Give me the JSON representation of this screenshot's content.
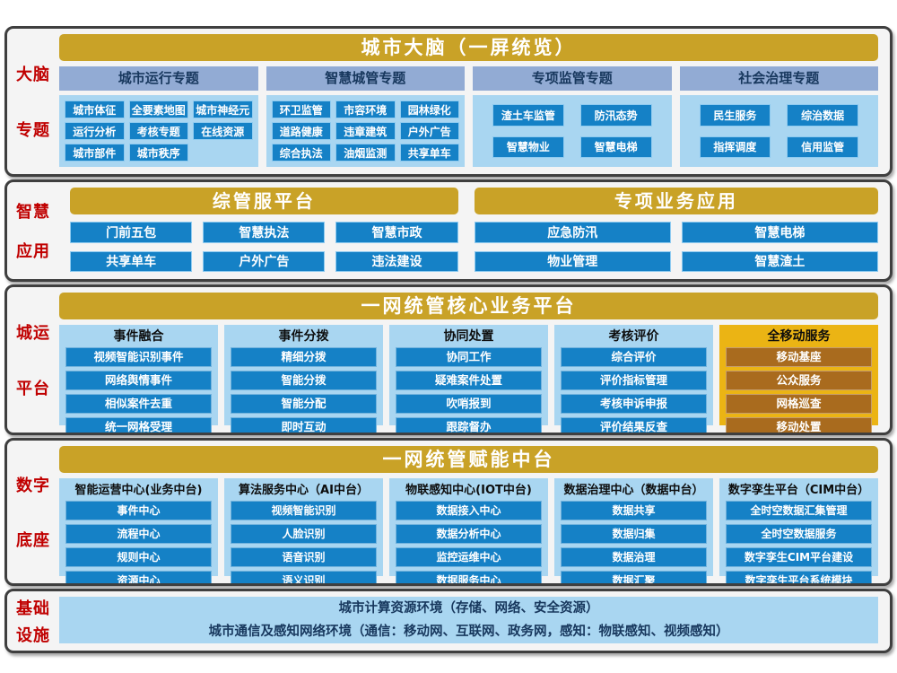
{
  "colors": {
    "gold_banner": "#C9A227",
    "gold_panel": "#EBB414",
    "brown_tile": "#A96B1E",
    "periwinkle_header": "#92ABD4",
    "light_blue_panel": "#A9D6F1",
    "blue_tile": "#1581C6",
    "navy_text": "#17375D",
    "red_label": "#C00000"
  },
  "sections": [
    {
      "type": "brain",
      "id": "brain",
      "side_label": [
        "大脑",
        "专题"
      ],
      "banner": "城市大脑（一屏统览）",
      "groups": [
        {
          "title": "城市运行专题",
          "cols": 3,
          "items": [
            "城市体征",
            "全要素地图",
            "城市神经元",
            "运行分析",
            "考核专题",
            "在线资源",
            "城市部件",
            "城市秩序"
          ]
        },
        {
          "title": "智慧城管专题",
          "cols": 3,
          "items": [
            "环卫监管",
            "市容环境",
            "园林绿化",
            "道路健康",
            "违章建筑",
            "户外广告",
            "综合执法",
            "油烟监测",
            "共享单车"
          ]
        },
        {
          "title": "专项监管专题",
          "cols": 2,
          "items": [
            "渣土车监管",
            "防汛态势",
            "智慧物业",
            "智慧电梯"
          ]
        },
        {
          "title": "社会治理专题",
          "cols": 2,
          "items": [
            "民生服务",
            "综治数据",
            "指挥调度",
            "信用监管"
          ]
        }
      ]
    },
    {
      "type": "apps",
      "id": "apps",
      "side_label": [
        "智慧",
        "应用"
      ],
      "blocks": [
        {
          "banner": "综管服平台",
          "cols": 3,
          "items": [
            "门前五包",
            "智慧执法",
            "智慧市政",
            "共享单车",
            "户外广告",
            "违法建设"
          ]
        },
        {
          "banner": "专项业务应用",
          "cols": 2,
          "items": [
            "应急防汛",
            "智慧电梯",
            "物业管理",
            "智慧渣土"
          ]
        }
      ]
    },
    {
      "type": "columns",
      "id": "core",
      "side_label": [
        "城运",
        "平台"
      ],
      "banner": "一网统管核心业务平台",
      "ellipsis": "......",
      "columns": [
        {
          "title": "事件融合",
          "accent": "blue",
          "items": [
            "视频智能识别事件",
            "网络舆情事件",
            "相似案件去重",
            "统一网格受理"
          ]
        },
        {
          "title": "事件分拨",
          "accent": "blue",
          "items": [
            "精细分拨",
            "智能分拨",
            "智能分配",
            "即时互动"
          ]
        },
        {
          "title": "协同处置",
          "accent": "blue",
          "items": [
            "协同工作",
            "疑难案件处置",
            "吹哨报到",
            "跟踪督办"
          ]
        },
        {
          "title": "考核评价",
          "accent": "blue",
          "items": [
            "综合评价",
            "评价指标管理",
            "考核申诉申报",
            "评价结果反查"
          ]
        },
        {
          "title": "全移动服务",
          "accent": "gold",
          "items": [
            "移动基座",
            "公众服务",
            "网格巡查",
            "移动处置"
          ]
        }
      ]
    },
    {
      "type": "columns",
      "id": "platform",
      "side_label": [
        "数字",
        "底座"
      ],
      "banner": "一网统管赋能中台",
      "ellipsis": "",
      "columns": [
        {
          "title": "智能运营中心(业务中台)",
          "accent": "blue",
          "items": [
            "事件中心",
            "流程中心",
            "规则中心",
            "资源中心"
          ]
        },
        {
          "title": "算法服务中心（AI中台）",
          "accent": "blue",
          "items": [
            "视频智能识别",
            "人脸识别",
            "语音识别",
            "语义识别"
          ]
        },
        {
          "title": "物联感知中心(IOT中台)",
          "accent": "blue",
          "items": [
            "数据接入中心",
            "数据分析中心",
            "监控运维中心",
            "数据服务中心"
          ]
        },
        {
          "title": "数据治理中心（数据中台）",
          "accent": "blue",
          "items": [
            "数据共享",
            "数据归集",
            "数据治理",
            "数据汇聚"
          ]
        },
        {
          "title": "数字孪生平台（CIM中台）",
          "accent": "blue",
          "items": [
            "全时空数据汇集管理",
            "全时空数据服务",
            "数字孪生CIM平台建设",
            "数字孪生平台系统模块"
          ]
        }
      ]
    },
    {
      "type": "infra",
      "id": "infra",
      "side_label": [
        "基础",
        "设施"
      ],
      "bars": [
        "城市计算资源环境（存储、网络、安全资源）",
        "城市通信及感知网络环境（通信：移动网、互联网、政务网，感知：物联感知、视频感知）"
      ]
    }
  ]
}
